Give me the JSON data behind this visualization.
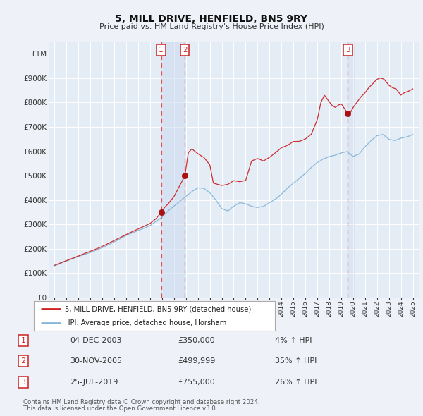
{
  "title": "5, MILL DRIVE, HENFIELD, BN5 9RY",
  "subtitle": "Price paid vs. HM Land Registry's House Price Index (HPI)",
  "ylim": [
    0,
    1050000
  ],
  "yticks": [
    0,
    100000,
    200000,
    300000,
    400000,
    500000,
    600000,
    700000,
    800000,
    900000,
    1000000
  ],
  "ytick_labels": [
    "£0",
    "£100K",
    "£200K",
    "£300K",
    "£400K",
    "£500K",
    "£600K",
    "£700K",
    "£800K",
    "£900K",
    "£1M"
  ],
  "background_color": "#eef2f8",
  "plot_bg_color": "#e4ecf6",
  "grid_color": "#ffffff",
  "red_line_color": "#cc2222",
  "blue_line_color": "#85b5d8",
  "sale_marker_color": "#aa1111",
  "dashed_line_color": "#dd3333",
  "shade_color": "#ccdaee",
  "transactions": [
    {
      "num": 1,
      "date_str": "04-DEC-2003",
      "date_x": 2003.92,
      "price": 350000,
      "pct": "4%",
      "dir": "↑"
    },
    {
      "num": 2,
      "date_str": "30-NOV-2005",
      "date_x": 2005.91,
      "price": 499999,
      "pct": "35%",
      "dir": "↑"
    },
    {
      "num": 3,
      "date_str": "25-JUL-2019",
      "date_x": 2019.56,
      "price": 755000,
      "pct": "26%",
      "dir": "↑"
    }
  ],
  "legend_entries": [
    "5, MILL DRIVE, HENFIELD, BN5 9RY (detached house)",
    "HPI: Average price, detached house, Horsham"
  ],
  "footnote1": "Contains HM Land Registry data © Crown copyright and database right 2024.",
  "footnote2": "This data is licensed under the Open Government Licence v3.0.",
  "xlim": [
    1994.5,
    2025.5
  ],
  "x_start": 1995,
  "x_end": 2025
}
